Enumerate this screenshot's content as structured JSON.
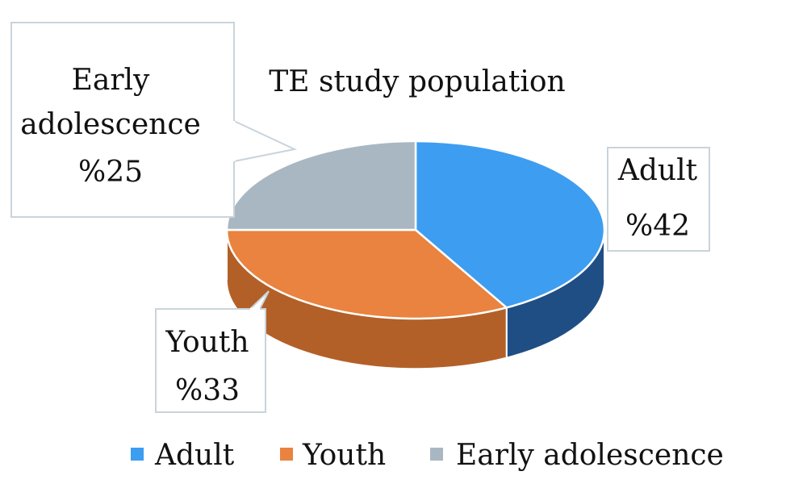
{
  "chart_data": {
    "type": "pie",
    "title": "TE study population",
    "series": [
      {
        "name": "",
        "slices": [
          {
            "key": "adult",
            "label": "Adult",
            "value": 42,
            "data_label": "%42",
            "color": "#3d9df0",
            "side_color": "#1f4e84"
          },
          {
            "key": "youth",
            "label": "Youth",
            "value": 33,
            "data_label": "%33",
            "color": "#e9833f",
            "side_color": "#b36028"
          },
          {
            "key": "early-adolescence",
            "label": "Early adolescence",
            "value": 25,
            "data_label": "%25",
            "color": "#a9b7c2",
            "side_color": "#7d8a94"
          }
        ]
      }
    ],
    "legend": {
      "placement": "bottom",
      "entries": [
        "Adult",
        "Youth",
        "Early adolescence"
      ]
    },
    "callout_labels": {
      "adult": [
        "Adult",
        "%42"
      ],
      "youth": [
        "Youth",
        "%33"
      ],
      "early-adolescence": [
        "Early",
        "adolescence",
        "%25"
      ]
    }
  }
}
